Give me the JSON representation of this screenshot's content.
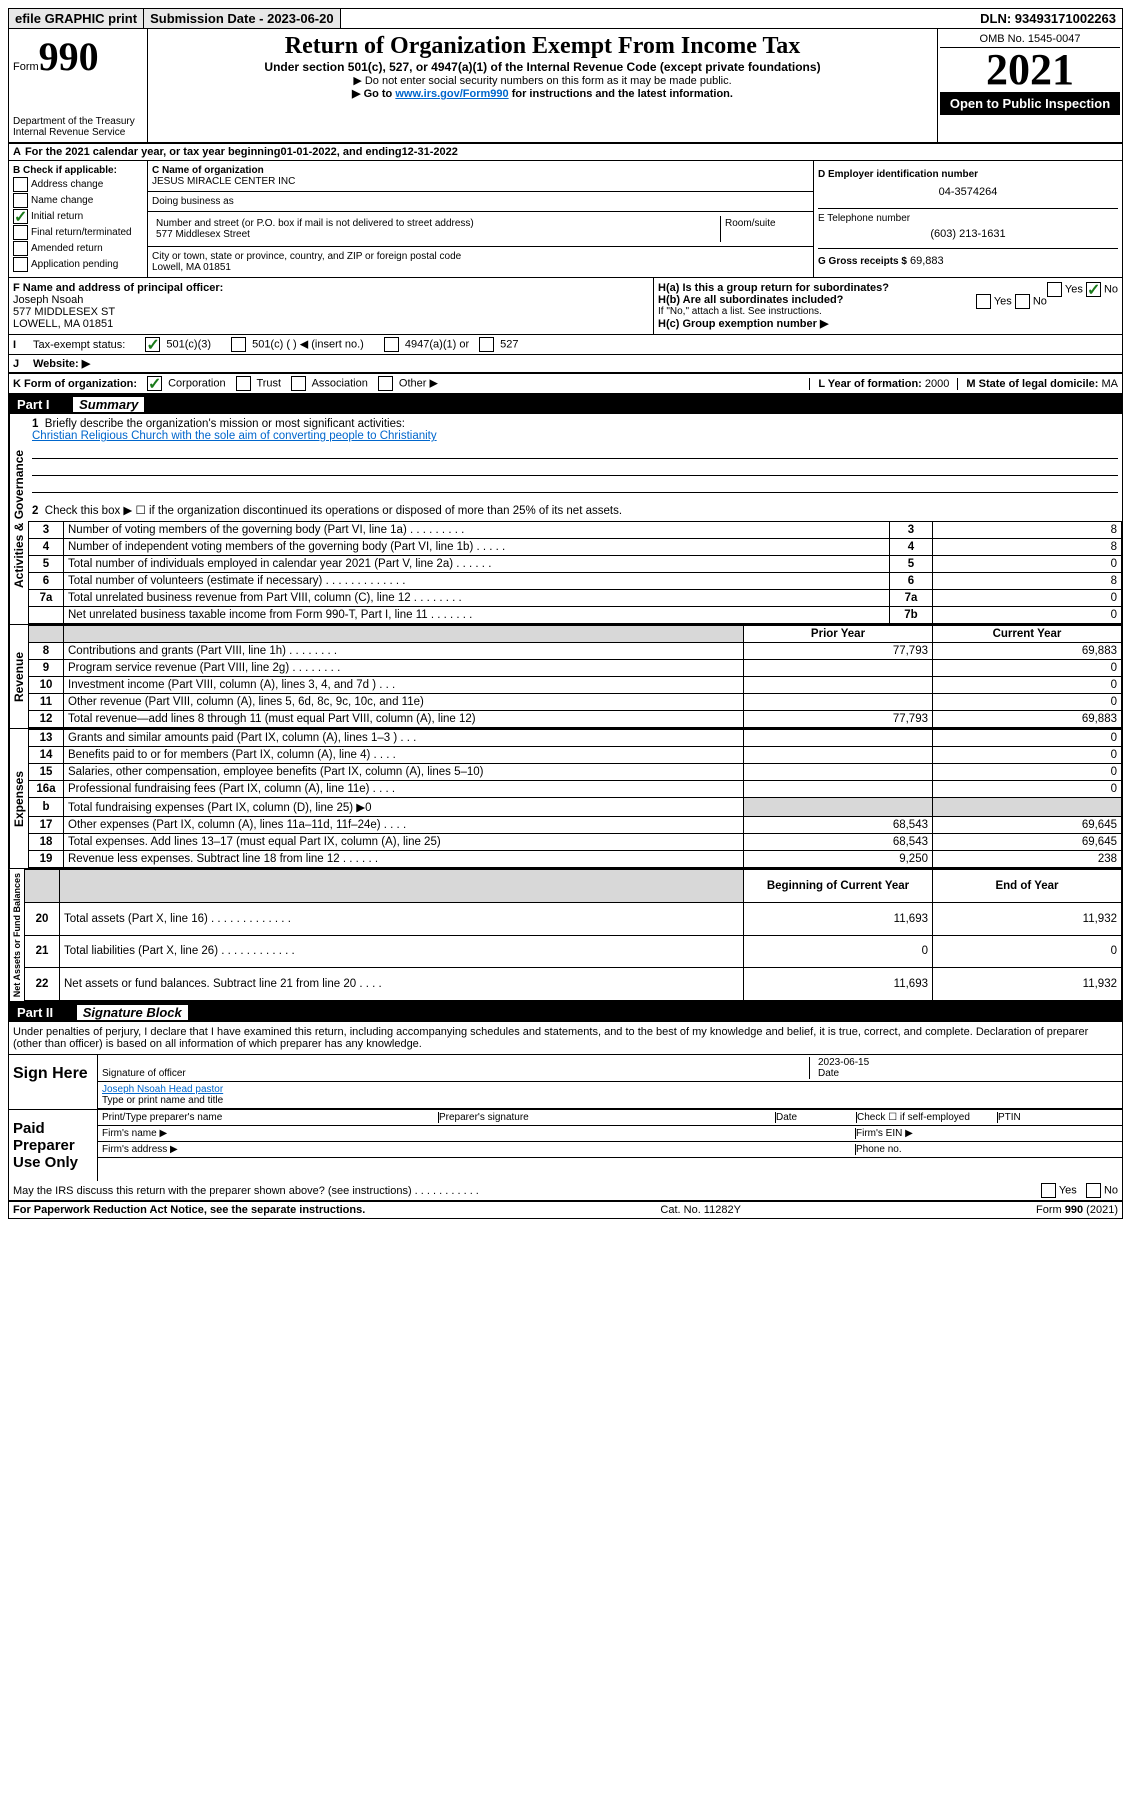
{
  "topbar": {
    "efile": "efile GRAPHIC print",
    "submission": "Submission Date - 2023-06-20",
    "dln": "DLN: 93493171002263"
  },
  "header": {
    "form": "Form",
    "form_no": "990",
    "dept": "Department of the Treasury\nInternal Revenue Service",
    "title": "Return of Organization Exempt From Income Tax",
    "sub1": "Under section 501(c), 527, or 4947(a)(1) of the Internal Revenue Code (except private foundations)",
    "sub2": "▶ Do not enter social security numbers on this form as it may be made public.",
    "sub3_pre": "▶ Go to ",
    "sub3_link": "www.irs.gov/Form990",
    "sub3_post": " for instructions and the latest information.",
    "omb": "OMB No. 1545-0047",
    "year": "2021",
    "open": "Open to Public Inspection"
  },
  "line_a": {
    "label": "A",
    "text": "For the 2021 calendar year, or tax year beginning ",
    "begin": "01-01-2022",
    "mid": " , and ending ",
    "end": "12-31-2022"
  },
  "col_b": {
    "label": "B Check if applicable:",
    "opts": [
      "Address change",
      "Name change",
      "Initial return",
      "Final return/terminated",
      "Amended return",
      "Application pending"
    ],
    "checked_idx": 2
  },
  "col_c": {
    "name_label": "C Name of organization",
    "name": "JESUS MIRACLE CENTER INC",
    "dba_label": "Doing business as",
    "dba": "",
    "street_label": "Number and street (or P.O. box if mail is not delivered to street address)",
    "room_label": "Room/suite",
    "street": "577 Middlesex Street",
    "city_label": "City or town, state or province, country, and ZIP or foreign postal code",
    "city": "Lowell, MA  01851"
  },
  "col_d": {
    "d_label": "D Employer identification number",
    "d_val": "04-3574264",
    "e_label": "E Telephone number",
    "e_val": "(603) 213-1631",
    "g_label": "G Gross receipts $",
    "g_val": "69,883"
  },
  "fgh": {
    "f_label": "F Name and address of principal officer:",
    "f_name": "Joseph Nsoah",
    "f_addr1": "577 MIDDLESEX ST",
    "f_addr2": "LOWELL, MA  01851",
    "ha_label": "H(a)  Is this a group return for subordinates?",
    "ha_yes": "Yes",
    "ha_no": "No",
    "hb_label": "H(b)  Are all subordinates included?",
    "hb_note": "If \"No,\" attach a list. See instructions.",
    "hc_label": "H(c)  Group exemption number ▶"
  },
  "ij": {
    "i_label": "I",
    "i_text": "Tax-exempt status:",
    "i_501c3": "501(c)(3)",
    "i_501c": "501(c) (  ) ◀ (insert no.)",
    "i_4947": "4947(a)(1) or",
    "i_527": "527",
    "j_label": "J",
    "j_text": "Website: ▶"
  },
  "klm": {
    "k_label": "K Form of organization:",
    "k_corp": "Corporation",
    "k_trust": "Trust",
    "k_assoc": "Association",
    "k_other": "Other ▶",
    "l_label": "L Year of formation:",
    "l_val": "2000",
    "m_label": "M State of legal domicile:",
    "m_val": "MA"
  },
  "part1": {
    "header": "Part I",
    "title": "Summary",
    "line1_label": "Briefly describe the organization's mission or most significant activities:",
    "line1_text": "Christian Religious Church with the sole aim of converting people to Christianity",
    "line2": "Check this box ▶ ☐  if the organization discontinued its operations or disposed of more than 25% of its net assets.",
    "governance": [
      {
        "n": "3",
        "t": "Number of voting members of the governing body (Part VI, line 1a)  .    .    .    .    .    .    .    .    .",
        "k": "3",
        "v": "8"
      },
      {
        "n": "4",
        "t": "Number of independent voting members of the governing body (Part VI, line 1b)   .    .    .    .    .",
        "k": "4",
        "v": "8"
      },
      {
        "n": "5",
        "t": "Total number of individuals employed in calendar year 2021 (Part V, line 2a)    .    .    .    .    .    .",
        "k": "5",
        "v": "0"
      },
      {
        "n": "6",
        "t": "Total number of volunteers (estimate if necessary)   .    .    .    .    .    .    .    .    .    .    .    .    .",
        "k": "6",
        "v": "8"
      },
      {
        "n": "7a",
        "t": "Total unrelated business revenue from Part VIII, column (C), line 12   .    .    .    .    .    .    .    .",
        "k": "7a",
        "v": "0"
      },
      {
        "n": "",
        "t": "Net unrelated business taxable income from Form 990-T, Part I, line 11    .    .    .    .    .    .    .",
        "k": "7b",
        "v": "0"
      }
    ],
    "col_prior": "Prior Year",
    "col_current": "Current Year",
    "revenue": [
      {
        "n": "8",
        "t": "Contributions and grants (Part VIII, line 1h)    .    .    .    .    .    .    .    .",
        "p": "77,793",
        "c": "69,883"
      },
      {
        "n": "9",
        "t": "Program service revenue (Part VIII, line 2g)     .    .    .    .    .    .    .    .",
        "p": "",
        "c": "0"
      },
      {
        "n": "10",
        "t": "Investment income (Part VIII, column (A), lines 3, 4, and 7d )    .    .    .",
        "p": "",
        "c": "0"
      },
      {
        "n": "11",
        "t": "Other revenue (Part VIII, column (A), lines 5, 6d, 8c, 9c, 10c, and 11e)",
        "p": "",
        "c": "0"
      },
      {
        "n": "12",
        "t": "Total revenue—add lines 8 through 11 (must equal Part VIII, column (A), line 12)",
        "p": "77,793",
        "c": "69,883"
      }
    ],
    "expenses": [
      {
        "n": "13",
        "t": "Grants and similar amounts paid (Part IX, column (A), lines 1–3 )    .    .    .",
        "p": "",
        "c": "0"
      },
      {
        "n": "14",
        "t": "Benefits paid to or for members (Part IX, column (A), line 4)    .    .    .    .",
        "p": "",
        "c": "0"
      },
      {
        "n": "15",
        "t": "Salaries, other compensation, employee benefits (Part IX, column (A), lines 5–10)",
        "p": "",
        "c": "0"
      },
      {
        "n": "16a",
        "t": "Professional fundraising fees (Part IX, column (A), line 11e)   .    .    .    .",
        "p": "",
        "c": "0"
      },
      {
        "n": "b",
        "t": "Total fundraising expenses (Part IX, column (D), line 25) ▶0",
        "p": "grey",
        "c": "grey"
      },
      {
        "n": "17",
        "t": "Other expenses (Part IX, column (A), lines 11a–11d, 11f–24e)   .    .    .    .",
        "p": "68,543",
        "c": "69,645"
      },
      {
        "n": "18",
        "t": "Total expenses. Add lines 13–17 (must equal Part IX, column (A), line 25)",
        "p": "68,543",
        "c": "69,645"
      },
      {
        "n": "19",
        "t": "Revenue less expenses. Subtract line 18 from line 12   .    .    .    .    .    .",
        "p": "9,250",
        "c": "238"
      }
    ],
    "col_begin": "Beginning of Current Year",
    "col_end": "End of Year",
    "netassets": [
      {
        "n": "20",
        "t": "Total assets (Part X, line 16)    .    .    .    .    .    .    .    .    .    .    .    .    .",
        "p": "11,693",
        "c": "11,932"
      },
      {
        "n": "21",
        "t": "Total liabilities (Part X, line 26)   .    .    .    .    .    .    .    .    .    .    .    .",
        "p": "0",
        "c": "0"
      },
      {
        "n": "22",
        "t": "Net assets or fund balances. Subtract line 21 from line 20    .    .    .    .",
        "p": "11,693",
        "c": "11,932"
      }
    ],
    "vert_gov": "Activities & Governance",
    "vert_rev": "Revenue",
    "vert_exp": "Expenses",
    "vert_net": "Net Assets or Fund Balances"
  },
  "part2": {
    "header": "Part II",
    "title": "Signature Block",
    "declaration": "Under penalties of perjury, I declare that I have examined this return, including accompanying schedules and statements, and to the best of my knowledge and belief, it is true, correct, and complete. Declaration of preparer (other than officer) is based on all information of which preparer has any knowledge.",
    "sign_here": "Sign Here",
    "sig_officer": "Signature of officer",
    "sig_date": "2023-06-15",
    "date_label": "Date",
    "sig_name": "Joseph Nsoah  Head pastor",
    "sig_name_label": "Type or print name and title",
    "paid": "Paid Preparer Use Only",
    "prep_name": "Print/Type preparer's name",
    "prep_sig": "Preparer's signature",
    "prep_date": "Date",
    "prep_check": "Check ☐ if self-employed",
    "ptin": "PTIN",
    "firm_name": "Firm's name  ▶",
    "firm_ein": "Firm's EIN ▶",
    "firm_addr": "Firm's address ▶",
    "phone": "Phone no.",
    "may_irs": "May the IRS discuss this return with the preparer shown above? (see instructions)    .    .    .    .    .    .    .    .    .    .    .",
    "yes": "Yes",
    "no": "No"
  },
  "footer": {
    "left": "For Paperwork Reduction Act Notice, see the separate instructions.",
    "mid": "Cat. No. 11282Y",
    "right": "Form 990 (2021)"
  }
}
